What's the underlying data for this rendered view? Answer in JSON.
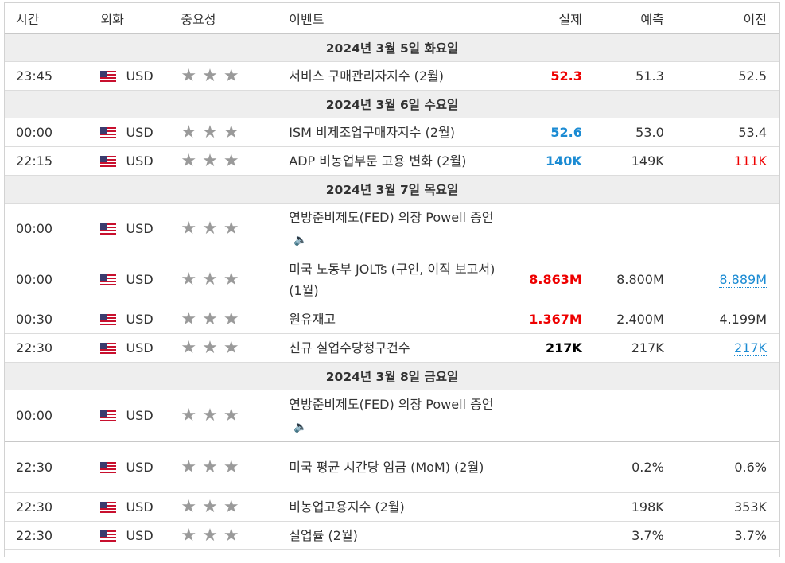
{
  "headers": {
    "time": "시간",
    "currency": "외화",
    "importance": "중요성",
    "event": "이벤트",
    "actual": "실제",
    "forecast": "예측",
    "previous": "이전"
  },
  "colors": {
    "red": "#ee0000",
    "blue": "#1b8bd3",
    "star": "#9a9a9a"
  },
  "icons": {
    "flag": "us-flag-icon",
    "star": "star-icon",
    "speaker": "speaker-icon"
  },
  "days": [
    {
      "date": "2024년 3월 5일 화요일",
      "rows": [
        {
          "time": "23:45",
          "cur": "USD",
          "event": "서비스 구매관리자지수 (2월)",
          "actual": "52.3",
          "actual_style": "red",
          "forecast": "51.3",
          "previous": "52.5",
          "prev_style": "",
          "audio": false
        }
      ]
    },
    {
      "date": "2024년 3월 6일 수요일",
      "rows": [
        {
          "time": "00:00",
          "cur": "USD",
          "event": "ISM 비제조업구매자지수 (2월)",
          "actual": "52.6",
          "actual_style": "blue",
          "forecast": "53.0",
          "previous": "53.4",
          "prev_style": "",
          "audio": false
        },
        {
          "time": "22:15",
          "cur": "USD",
          "event": "ADP 비농업부문 고용 변화 (2월)",
          "actual": "140K",
          "actual_style": "blue",
          "forecast": "149K",
          "previous": "111K",
          "prev_style": "red",
          "audio": false
        }
      ]
    },
    {
      "date": "2024년 3월 7일 목요일",
      "rows": [
        {
          "time": "00:00",
          "cur": "USD",
          "event": "연방준비제도(FED) 의장 Powell 증언",
          "actual": "",
          "actual_style": "",
          "forecast": "",
          "previous": "",
          "prev_style": "",
          "audio": true
        },
        {
          "time": "00:00",
          "cur": "USD",
          "event": "미국 노동부 JOLTs (구인, 이직 보고서) (1월)",
          "actual": "8.863M",
          "actual_style": "red",
          "forecast": "8.800M",
          "previous": "8.889M",
          "prev_style": "blue",
          "audio": false
        },
        {
          "time": "00:30",
          "cur": "USD",
          "event": "원유재고",
          "actual": "1.367M",
          "actual_style": "red",
          "forecast": "2.400M",
          "previous": "4.199M",
          "prev_style": "",
          "audio": false
        },
        {
          "time": "22:30",
          "cur": "USD",
          "event": "신규 실업수당청구건수",
          "actual": "217K",
          "actual_style": "black",
          "forecast": "217K",
          "previous": "217K",
          "prev_style": "blue",
          "audio": false
        }
      ]
    },
    {
      "date": "2024년 3월 8일 금요일",
      "rows": [
        {
          "time": "00:00",
          "cur": "USD",
          "event": "연방준비제도(FED) 의장 Powell 증언",
          "actual": "",
          "actual_style": "",
          "forecast": "",
          "previous": "",
          "prev_style": "",
          "audio": true
        },
        {
          "time": "22:30",
          "cur": "USD",
          "event": "미국 평균 시간당 임금 (MoM) (2월)",
          "actual": "",
          "actual_style": "",
          "forecast": "0.2%",
          "previous": "0.6%",
          "prev_style": "",
          "audio": false
        },
        {
          "time": "22:30",
          "cur": "USD",
          "event": "비농업고용지수 (2월)",
          "actual": "",
          "actual_style": "",
          "forecast": "198K",
          "previous": "353K",
          "prev_style": "",
          "audio": false
        },
        {
          "time": "22:30",
          "cur": "USD",
          "event": "실업률 (2월)",
          "actual": "",
          "actual_style": "",
          "forecast": "3.7%",
          "previous": "3.7%",
          "prev_style": "",
          "audio": false
        }
      ]
    }
  ]
}
